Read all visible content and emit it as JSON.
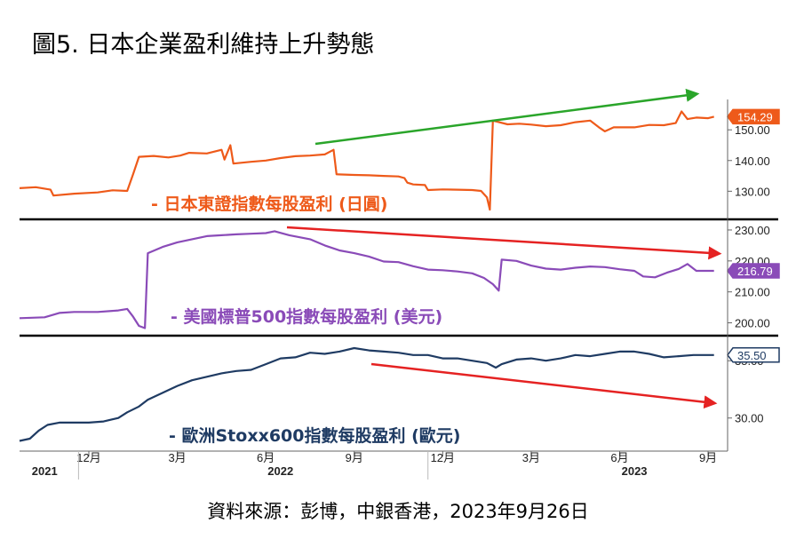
{
  "title": "圖5. 日本企業盈利維持上升勢態",
  "source": "資料來源：彭博，中銀香港，2023年9月26日",
  "chart_data": {
    "type": "line",
    "x_ticks": [
      {
        "t": 0.0,
        "label": "12月"
      },
      {
        "t": 3.0,
        "label": "3月"
      },
      {
        "t": 6.0,
        "label": "6月"
      },
      {
        "t": 9.0,
        "label": "9月"
      },
      {
        "t": 12.0,
        "label": "12月"
      },
      {
        "t": 15.0,
        "label": "3月"
      },
      {
        "t": 18.0,
        "label": "6月"
      },
      {
        "t": 21.0,
        "label": "9月"
      }
    ],
    "years": [
      {
        "t": -1.5,
        "label": "2021"
      },
      {
        "t": 6.5,
        "label": "2022"
      },
      {
        "t": 18.5,
        "label": "2023"
      }
    ],
    "xlim": [
      -2.35,
      21.45
    ],
    "panels": [
      {
        "name": "- 日本東證指數每股盈利 (日圓)",
        "color": "#ee5a1a",
        "ylim": [
          122,
          157
        ],
        "yticks": [
          "130.00",
          "140.00",
          "150.00"
        ],
        "last_value": "154.29",
        "trend": "up",
        "series": [
          [
            -2.35,
            131
          ],
          [
            -1.8,
            131.3
          ],
          [
            -1.3,
            130.5
          ],
          [
            -1.2,
            128.6
          ],
          [
            -0.5,
            129.2
          ],
          [
            0.3,
            129.6
          ],
          [
            0.8,
            130.3
          ],
          [
            1.3,
            130.1
          ],
          [
            1.5,
            135.5
          ],
          [
            1.7,
            141.2
          ],
          [
            2.2,
            141.5
          ],
          [
            2.7,
            141
          ],
          [
            3.1,
            141.6
          ],
          [
            3.4,
            142.5
          ],
          [
            4.0,
            142.3
          ],
          [
            4.5,
            143.5
          ],
          [
            4.6,
            140.3
          ],
          [
            4.8,
            145
          ],
          [
            4.9,
            139
          ],
          [
            5.5,
            139.6
          ],
          [
            6.0,
            140
          ],
          [
            6.5,
            140.8
          ],
          [
            7.0,
            141.4
          ],
          [
            7.5,
            141.6
          ],
          [
            8.0,
            142
          ],
          [
            8.3,
            143.5
          ],
          [
            8.4,
            135.5
          ],
          [
            9.0,
            135.3
          ],
          [
            9.5,
            135.2
          ],
          [
            10.0,
            135
          ],
          [
            10.5,
            134.8
          ],
          [
            10.7,
            134.3
          ],
          [
            10.8,
            132.8
          ],
          [
            11.0,
            132.2
          ],
          [
            11.4,
            132
          ],
          [
            11.5,
            130.4
          ],
          [
            12.0,
            130.6
          ],
          [
            12.5,
            130.5
          ],
          [
            13.0,
            130.4
          ],
          [
            13.3,
            130.1
          ],
          [
            13.5,
            128
          ],
          [
            13.6,
            124
          ],
          [
            13.7,
            153
          ],
          [
            14.2,
            151.8
          ],
          [
            14.6,
            152
          ],
          [
            15.0,
            151.7
          ],
          [
            15.5,
            151.2
          ],
          [
            16.0,
            151.5
          ],
          [
            16.5,
            152.5
          ],
          [
            17.0,
            153
          ],
          [
            17.3,
            150.8
          ],
          [
            17.5,
            149.5
          ],
          [
            17.8,
            150.8
          ],
          [
            18.5,
            150.8
          ],
          [
            19.0,
            151.6
          ],
          [
            19.5,
            151.5
          ],
          [
            19.9,
            152.2
          ],
          [
            20.1,
            156
          ],
          [
            20.3,
            153.5
          ],
          [
            20.6,
            154
          ],
          [
            21.0,
            153.8
          ],
          [
            21.2,
            154.29
          ]
        ]
      },
      {
        "name": "- 美國標普500指數每股盈利 (美元)",
        "color": "#8a4bb8",
        "ylim": [
          197,
          232
        ],
        "yticks": [
          "200.00",
          "210.00",
          "220.00",
          "230.00"
        ],
        "last_value": "216.79",
        "trend": "down",
        "series": [
          [
            -2.35,
            201.5
          ],
          [
            -1.5,
            201.8
          ],
          [
            -1.0,
            203.2
          ],
          [
            -0.5,
            203.5
          ],
          [
            0.3,
            203.5
          ],
          [
            1.0,
            204
          ],
          [
            1.3,
            204.5
          ],
          [
            1.5,
            202
          ],
          [
            1.7,
            199
          ],
          [
            1.9,
            198.3
          ],
          [
            2.0,
            222.5
          ],
          [
            2.5,
            224.5
          ],
          [
            3.0,
            226
          ],
          [
            3.5,
            227
          ],
          [
            4.0,
            228
          ],
          [
            4.5,
            228.3
          ],
          [
            5.0,
            228.6
          ],
          [
            5.5,
            228.8
          ],
          [
            6.0,
            229
          ],
          [
            6.3,
            229.6
          ],
          [
            6.8,
            228.3
          ],
          [
            7.5,
            227
          ],
          [
            8.0,
            225
          ],
          [
            8.5,
            223.4
          ],
          [
            9.0,
            222.5
          ],
          [
            9.5,
            221.4
          ],
          [
            10.0,
            219.8
          ],
          [
            10.5,
            219.6
          ],
          [
            11.0,
            218.3
          ],
          [
            11.5,
            217.2
          ],
          [
            12.0,
            217
          ],
          [
            12.5,
            216.6
          ],
          [
            13.0,
            216
          ],
          [
            13.4,
            214.5
          ],
          [
            13.7,
            212.5
          ],
          [
            13.9,
            210.4
          ],
          [
            14.0,
            220.4
          ],
          [
            14.5,
            220
          ],
          [
            15.0,
            218.5
          ],
          [
            15.5,
            217.5
          ],
          [
            16.0,
            217.2
          ],
          [
            16.5,
            217.8
          ],
          [
            17.0,
            218.2
          ],
          [
            17.5,
            218
          ],
          [
            18.0,
            217.3
          ],
          [
            18.5,
            216.8
          ],
          [
            18.8,
            215
          ],
          [
            19.2,
            214.7
          ],
          [
            19.6,
            216.2
          ],
          [
            20.0,
            217.4
          ],
          [
            20.3,
            219
          ],
          [
            20.6,
            216.79
          ],
          [
            21.2,
            216.79
          ]
        ]
      },
      {
        "name": "- 歐洲Stoxx600指數每股盈利 (歐元)",
        "color": "#1f3b63",
        "ylim": [
          27.5,
          36.8
        ],
        "yticks": [
          "30.00",
          "35.00"
        ],
        "last_value": "35.50",
        "trend": "down",
        "series": [
          [
            -2.35,
            28
          ],
          [
            -2.0,
            28.2
          ],
          [
            -1.7,
            28.9
          ],
          [
            -1.4,
            29.4
          ],
          [
            -1.0,
            29.6
          ],
          [
            -0.5,
            29.6
          ],
          [
            0.0,
            29.6
          ],
          [
            0.5,
            29.7
          ],
          [
            1.0,
            30
          ],
          [
            1.3,
            30.5
          ],
          [
            1.7,
            31
          ],
          [
            2.0,
            31.6
          ],
          [
            2.5,
            32.2
          ],
          [
            3.0,
            32.8
          ],
          [
            3.5,
            33.3
          ],
          [
            4.0,
            33.6
          ],
          [
            4.5,
            33.9
          ],
          [
            5.0,
            34.1
          ],
          [
            5.5,
            34.2
          ],
          [
            6.0,
            34.7
          ],
          [
            6.5,
            35.2
          ],
          [
            7.0,
            35.3
          ],
          [
            7.5,
            35.7
          ],
          [
            8.0,
            35.6
          ],
          [
            8.5,
            35.8
          ],
          [
            9.0,
            36.1
          ],
          [
            9.5,
            35.9
          ],
          [
            10.0,
            35.8
          ],
          [
            10.5,
            35.7
          ],
          [
            11.0,
            35.5
          ],
          [
            11.5,
            35.5
          ],
          [
            12.0,
            35.2
          ],
          [
            12.5,
            35.2
          ],
          [
            13.0,
            35
          ],
          [
            13.5,
            34.8
          ],
          [
            13.8,
            34.4
          ],
          [
            14.0,
            34.7
          ],
          [
            14.5,
            35.1
          ],
          [
            15.0,
            35.2
          ],
          [
            15.5,
            35
          ],
          [
            16.0,
            35.2
          ],
          [
            16.5,
            35.5
          ],
          [
            17.0,
            35.4
          ],
          [
            17.5,
            35.6
          ],
          [
            18.0,
            35.8
          ],
          [
            18.5,
            35.8
          ],
          [
            19.0,
            35.6
          ],
          [
            19.5,
            35.3
          ],
          [
            20.0,
            35.4
          ],
          [
            20.5,
            35.5
          ],
          [
            21.0,
            35.5
          ],
          [
            21.2,
            35.5
          ]
        ]
      }
    ]
  }
}
